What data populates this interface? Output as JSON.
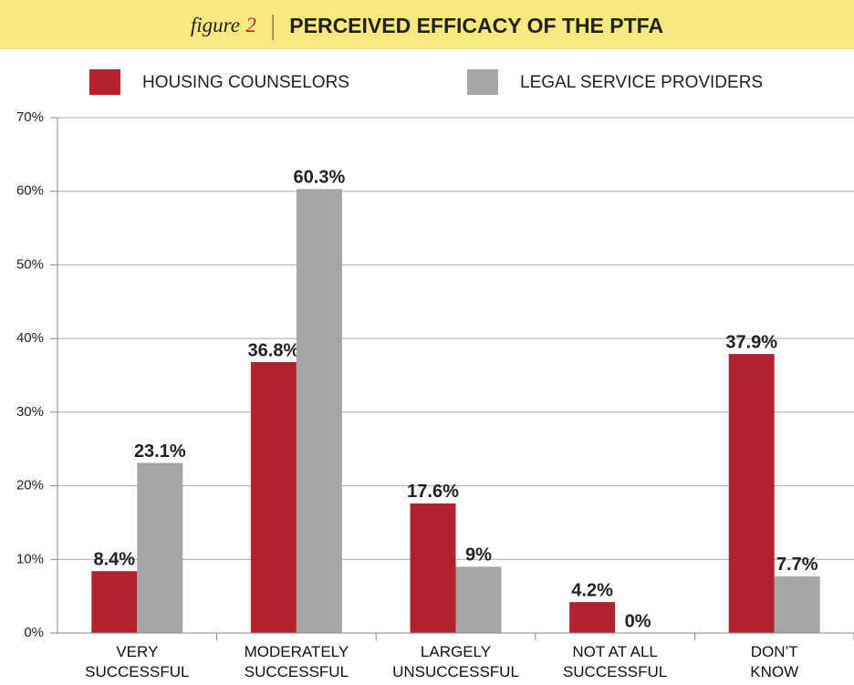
{
  "chart_data": {
    "type": "bar",
    "figure_label": "figure",
    "figure_number": "2",
    "title": "PERCEIVED EFFICACY OF THE PTFA",
    "categories": [
      "VERY\nSUCCESSFUL",
      "MODERATELY\nSUCCESSFUL",
      "LARGELY\nUNSUCCESSFUL",
      "NOT AT ALL\nSUCCESSFUL",
      "DON’T\nKNOW"
    ],
    "series": [
      {
        "name": "HOUSING COUNSELORS",
        "color": "#b3232f",
        "values": [
          8.4,
          36.8,
          17.6,
          4.2,
          37.9
        ],
        "value_labels": [
          "8.4%",
          "36.8%",
          "17.6%",
          "4.2%",
          "37.9%"
        ]
      },
      {
        "name": "LEGAL SERVICE PROVIDERS",
        "color": "#a6a6a6",
        "values": [
          23.1,
          60.3,
          9,
          0,
          7.7
        ],
        "value_labels": [
          "23.1%",
          "60.3%",
          "9%",
          "0%",
          "7.7%"
        ]
      }
    ],
    "ylim": [
      0,
      70
    ],
    "yticks": [
      {
        "value": 0,
        "label": "0%"
      },
      {
        "value": 10,
        "label": "10%"
      },
      {
        "value": 20,
        "label": "20%"
      },
      {
        "value": 30,
        "label": "30%"
      },
      {
        "value": 40,
        "label": "40%"
      },
      {
        "value": 50,
        "label": "50%"
      },
      {
        "value": 60,
        "label": "60%"
      },
      {
        "value": 70,
        "label": "70%"
      }
    ],
    "grid": true,
    "legend": "top"
  }
}
